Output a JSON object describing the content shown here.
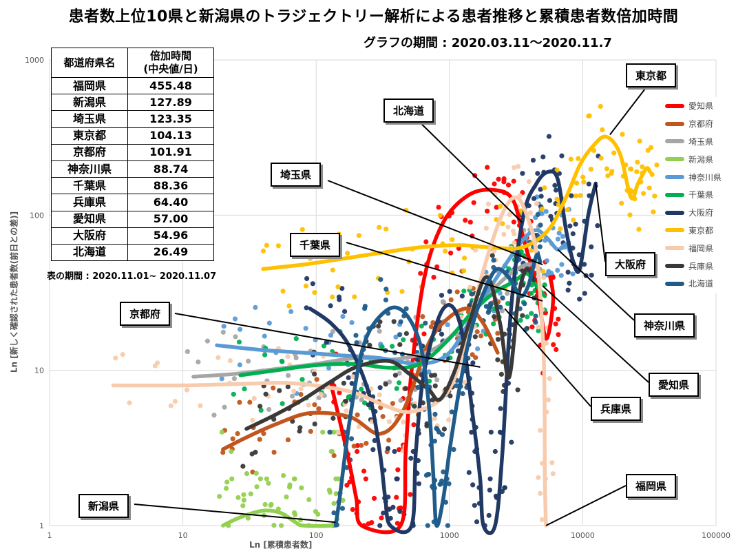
{
  "title": "患者数上位10県と新潟県のトラジェクトリー解析による患者推移と累積患者数倍加時間",
  "subtitle": "グラフの期間 : 2020.03.11〜2020.11.7",
  "table": {
    "headers": [
      "都道府県名",
      "倍加時間\n(中央値/日)"
    ],
    "rows": [
      [
        "福岡県",
        "455.48"
      ],
      [
        "新潟県",
        "127.89"
      ],
      [
        "埼玉県",
        "123.35"
      ],
      [
        "東京都",
        "104.13"
      ],
      [
        "京都府",
        "101.91"
      ],
      [
        "神奈川県",
        "88.74"
      ],
      [
        "千葉県",
        "88.36"
      ],
      [
        "兵庫県",
        "64.40"
      ],
      [
        "愛知県",
        "57.00"
      ],
      [
        "大阪府",
        "54.96"
      ],
      [
        "北海道",
        "26.49"
      ]
    ],
    "note": "表の期間 : 2020.11.01~ 2020.11.07"
  },
  "callouts": [
    "東京都",
    "北海道",
    "埼玉県",
    "千葉県",
    "京都府",
    "大阪府",
    "神奈川県",
    "愛知県",
    "兵庫県",
    "福岡県",
    "新潟県"
  ],
  "chart_data": {
    "type": "scatter",
    "xlabel": "Ln [累積患者数]",
    "ylabel": "Ln [新しく確認された患者数(前日との差)]",
    "xscale": "log",
    "yscale": "log",
    "xlim": [
      1,
      100000
    ],
    "ylim": [
      1,
      1000
    ],
    "xticks": [
      "1",
      "10",
      "100",
      "1000",
      "10000",
      "100000"
    ],
    "yticks": [
      "1",
      "10",
      "100",
      "1000"
    ],
    "grid": true,
    "legend_position": "right",
    "series": [
      {
        "name": "愛知県",
        "color": "#ff0000",
        "trajectory": [
          [
            130,
            8
          ],
          [
            170,
            3
          ],
          [
            200,
            1.5
          ],
          [
            220,
            1
          ],
          [
            430,
            1
          ],
          [
            470,
            3
          ],
          [
            520,
            10
          ],
          [
            650,
            40
          ],
          [
            900,
            90
          ],
          [
            1400,
            135
          ],
          [
            2200,
            145
          ],
          [
            3000,
            125
          ],
          [
            3600,
            70
          ],
          [
            4500,
            35
          ],
          [
            5300,
            16
          ],
          [
            6000,
            28
          ],
          [
            5700,
            40
          ]
        ]
      },
      {
        "name": "京都府",
        "color": "#c0561e",
        "trajectory": [
          [
            20,
            3.1
          ],
          [
            30,
            3.7
          ],
          [
            50,
            4.5
          ],
          [
            90,
            5.3
          ],
          [
            180,
            5
          ],
          [
            300,
            3.9
          ],
          [
            450,
            5.5
          ],
          [
            700,
            15
          ],
          [
            1000,
            22
          ],
          [
            1400,
            25
          ],
          [
            1800,
            20
          ],
          [
            2300,
            13
          ]
        ]
      },
      {
        "name": "埼玉県",
        "color": "#a6a6a6",
        "trajectory": [
          [
            12,
            9.1
          ],
          [
            25,
            9.5
          ],
          [
            50,
            10.2
          ],
          [
            100,
            11
          ],
          [
            200,
            12
          ],
          [
            400,
            11.8
          ],
          [
            800,
            14
          ],
          [
            1400,
            22
          ],
          [
            2500,
            38
          ],
          [
            3800,
            48
          ],
          [
            4800,
            45
          ]
        ]
      },
      {
        "name": "新潟県",
        "color": "#92d050",
        "trajectory": [
          [
            20,
            1
          ],
          [
            25,
            1.1
          ],
          [
            33,
            1.2
          ],
          [
            42,
            1.25
          ],
          [
            55,
            1.2
          ],
          [
            70,
            1.05
          ],
          [
            80,
            1
          ],
          [
            130,
            1
          ],
          [
            140,
            1.05
          ],
          [
            145,
            1.1
          ]
        ]
      },
      {
        "name": "神奈川県",
        "color": "#5b9bd5",
        "trajectory": [
          [
            18,
            14.5
          ],
          [
            40,
            13.5
          ],
          [
            80,
            13
          ],
          [
            150,
            12.5
          ],
          [
            300,
            12
          ],
          [
            600,
            11
          ],
          [
            1000,
            13
          ],
          [
            1600,
            25
          ],
          [
            2500,
            45
          ],
          [
            3600,
            70
          ],
          [
            4500,
            80
          ],
          [
            5500,
            70
          ],
          [
            6500,
            60
          ],
          [
            7500,
            65
          ],
          [
            8000,
            58
          ]
        ]
      },
      {
        "name": "千葉県",
        "color": "#00b050",
        "trajectory": [
          [
            27,
            9.3
          ],
          [
            50,
            10
          ],
          [
            100,
            10.8
          ],
          [
            200,
            11
          ],
          [
            350,
            10.4
          ],
          [
            600,
            11
          ],
          [
            1000,
            16
          ],
          [
            1500,
            24
          ],
          [
            2200,
            32
          ],
          [
            3000,
            37
          ],
          [
            3800,
            42
          ],
          [
            4500,
            35
          ],
          [
            5200,
            30
          ]
        ]
      },
      {
        "name": "大阪府",
        "color": "#203864",
        "trajectory": [
          [
            90,
            25
          ],
          [
            130,
            20
          ],
          [
            180,
            14
          ],
          [
            250,
            7
          ],
          [
            300,
            3
          ],
          [
            330,
            1.5
          ],
          [
            360,
            1
          ],
          [
            520,
            1
          ],
          [
            560,
            3
          ],
          [
            650,
            10
          ],
          [
            900,
            25
          ],
          [
            1200,
            20
          ],
          [
            1500,
            5
          ],
          [
            1700,
            2
          ],
          [
            1800,
            1
          ],
          [
            2200,
            1
          ],
          [
            2500,
            3
          ],
          [
            2900,
            25
          ],
          [
            3600,
            100
          ],
          [
            4500,
            160
          ],
          [
            5500,
            190
          ],
          [
            6500,
            170
          ],
          [
            7500,
            80
          ],
          [
            8500,
            50
          ],
          [
            9500,
            45
          ],
          [
            11000,
            100
          ],
          [
            12500,
            160
          ]
        ]
      },
      {
        "name": "東京都",
        "color": "#ffc000",
        "trajectory": [
          [
            40,
            45
          ],
          [
            80,
            48
          ],
          [
            150,
            52
          ],
          [
            300,
            57
          ],
          [
            600,
            62
          ],
          [
            1200,
            64
          ],
          [
            2000,
            62
          ],
          [
            3500,
            62
          ],
          [
            5500,
            80
          ],
          [
            7500,
            130
          ],
          [
            9500,
            210
          ],
          [
            12000,
            280
          ],
          [
            15000,
            320
          ],
          [
            19000,
            250
          ],
          [
            23000,
            130
          ],
          [
            26000,
            160
          ],
          [
            30000,
            200
          ],
          [
            32000,
            190
          ]
        ]
      },
      {
        "name": "福岡県",
        "color": "#f8cbad",
        "trajectory": [
          [
            3,
            8
          ],
          [
            10,
            8
          ],
          [
            30,
            8.2
          ],
          [
            60,
            8.3
          ],
          [
            120,
            7.8
          ],
          [
            200,
            7.1
          ],
          [
            350,
            5.8
          ],
          [
            500,
            5.4
          ],
          [
            800,
            6.2
          ],
          [
            1100,
            9
          ],
          [
            1500,
            25
          ],
          [
            2000,
            60
          ],
          [
            2600,
            110
          ],
          [
            3200,
            130
          ],
          [
            3800,
            100
          ],
          [
            4500,
            55
          ],
          [
            5100,
            12
          ],
          [
            5200,
            2
          ],
          [
            5300,
            1
          ]
        ]
      },
      {
        "name": "兵庫県",
        "color": "#3b3838",
        "trajectory": [
          [
            30,
            4.2
          ],
          [
            50,
            5.2
          ],
          [
            80,
            6.5
          ],
          [
            130,
            8.5
          ],
          [
            200,
            10.5
          ],
          [
            350,
            11.5
          ],
          [
            500,
            9.5
          ],
          [
            700,
            7.5
          ],
          [
            850,
            6.5
          ],
          [
            1100,
            10
          ],
          [
            1400,
            20
          ],
          [
            1900,
            40
          ],
          [
            2400,
            20
          ],
          [
            2800,
            9
          ],
          [
            3300,
            30
          ],
          [
            3800,
            45
          ],
          [
            4300,
            38
          ]
        ]
      },
      {
        "name": "北海道",
        "color": "#1f5c8b",
        "trajectory": [
          [
            140,
            1
          ],
          [
            150,
            1.5
          ],
          [
            180,
            5
          ],
          [
            230,
            15
          ],
          [
            330,
            24
          ],
          [
            450,
            24
          ],
          [
            600,
            15
          ],
          [
            700,
            6
          ],
          [
            760,
            2
          ],
          [
            800,
            1
          ],
          [
            900,
            1.5
          ],
          [
            1000,
            3
          ],
          [
            1200,
            8
          ],
          [
            1500,
            20
          ],
          [
            1900,
            35
          ],
          [
            2300,
            45
          ],
          [
            2900,
            38
          ],
          [
            3400,
            30
          ],
          [
            3900,
            35
          ],
          [
            4500,
            55
          ],
          [
            4800,
            50
          ]
        ]
      }
    ]
  },
  "legend": [
    {
      "label": "愛知県",
      "color": "#ff0000"
    },
    {
      "label": "京都府",
      "color": "#c0561e"
    },
    {
      "label": "埼玉県",
      "color": "#a6a6a6"
    },
    {
      "label": "新潟県",
      "color": "#92d050"
    },
    {
      "label": "神奈川県",
      "color": "#5b9bd5"
    },
    {
      "label": "千葉県",
      "color": "#00b050"
    },
    {
      "label": "大阪府",
      "color": "#203864"
    },
    {
      "label": "東京都",
      "color": "#ffc000"
    },
    {
      "label": "福岡県",
      "color": "#f8cbad"
    },
    {
      "label": "兵庫県",
      "color": "#3b3838"
    },
    {
      "label": "北海道",
      "color": "#1f5c8b"
    }
  ]
}
